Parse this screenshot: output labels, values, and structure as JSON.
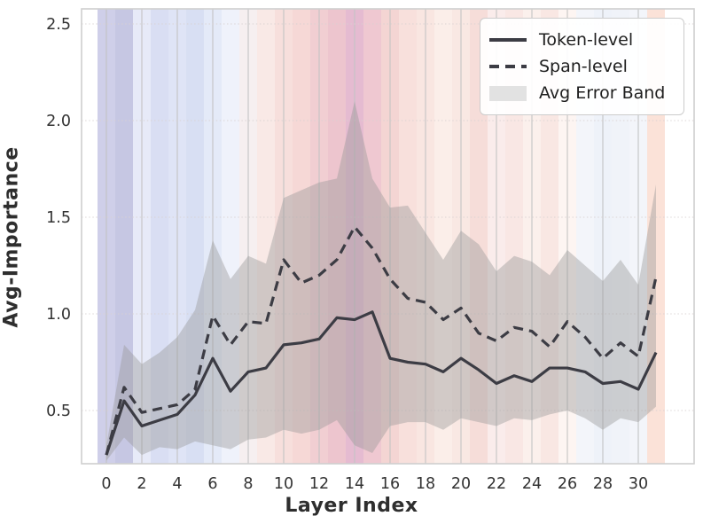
{
  "figure": {
    "xlabel": "Layer Index",
    "ylabel": "Avg-Importance",
    "legend": [
      {
        "label": "Token-level",
        "style": "solid-line"
      },
      {
        "label": "Span-level",
        "style": "dashed-line"
      },
      {
        "label": "Avg Error Band",
        "style": "patch"
      }
    ]
  },
  "chart_data": {
    "type": "line",
    "title": "",
    "xlabel": "Layer Index",
    "ylabel": "Avg-Importance",
    "legend_position": "upper right",
    "grid": true,
    "xlim": [
      -1.4,
      33.15
    ],
    "ylim": [
      0.22,
      2.58
    ],
    "xticks": [
      0,
      2,
      4,
      6,
      8,
      10,
      12,
      14,
      16,
      18,
      20,
      22,
      24,
      26,
      28,
      30
    ],
    "yticks": [
      "0.5",
      "1.0",
      "1.5",
      "2.0",
      "2.5"
    ],
    "x": [
      0,
      1,
      2,
      3,
      4,
      5,
      6,
      7,
      8,
      9,
      10,
      11,
      12,
      13,
      14,
      15,
      16,
      17,
      18,
      19,
      20,
      21,
      22,
      23,
      24,
      25,
      26,
      27,
      28,
      29,
      30,
      31
    ],
    "series": [
      {
        "name": "Token-level",
        "style": "solid",
        "values": [
          0.27,
          0.55,
          0.42,
          0.45,
          0.48,
          0.58,
          0.77,
          0.6,
          0.7,
          0.72,
          0.84,
          0.85,
          0.87,
          0.98,
          0.97,
          1.01,
          0.77,
          0.75,
          0.74,
          0.7,
          0.77,
          0.71,
          0.64,
          0.68,
          0.65,
          0.72,
          0.72,
          0.7,
          0.64,
          0.65,
          0.61,
          0.8
        ]
      },
      {
        "name": "Span-level",
        "style": "dashed",
        "values": [
          0.27,
          0.62,
          0.49,
          0.51,
          0.53,
          0.61,
          0.99,
          0.84,
          0.96,
          0.95,
          1.28,
          1.16,
          1.2,
          1.28,
          1.45,
          1.34,
          1.18,
          1.08,
          1.06,
          0.97,
          1.03,
          0.9,
          0.86,
          0.93,
          0.91,
          0.83,
          0.96,
          0.88,
          0.77,
          0.85,
          0.78,
          1.19
        ]
      }
    ],
    "band": {
      "name": "Avg Error Band",
      "upper": [
        0.32,
        0.84,
        0.74,
        0.8,
        0.88,
        1.02,
        1.38,
        1.18,
        1.3,
        1.26,
        1.6,
        1.64,
        1.68,
        1.7,
        2.1,
        1.7,
        1.55,
        1.56,
        1.42,
        1.28,
        1.43,
        1.36,
        1.22,
        1.3,
        1.27,
        1.2,
        1.33,
        1.25,
        1.17,
        1.28,
        1.15,
        1.67
      ],
      "lower": [
        0.24,
        0.36,
        0.27,
        0.31,
        0.3,
        0.34,
        0.32,
        0.3,
        0.35,
        0.36,
        0.4,
        0.38,
        0.4,
        0.45,
        0.32,
        0.28,
        0.42,
        0.44,
        0.44,
        0.4,
        0.46,
        0.44,
        0.42,
        0.46,
        0.45,
        0.48,
        0.5,
        0.46,
        0.4,
        0.46,
        0.44,
        0.52
      ]
    },
    "background_bands": {
      "note": "one vertical tint band per layer index 0-31",
      "colors": [
        "#cfcfe9",
        "#c6c7e3",
        "#e7eaf8",
        "#d9def3",
        "#dfe4f6",
        "#d8dff3",
        "#e4eaf8",
        "#eff2fb",
        "#f6eff0",
        "#f9e9e6",
        "#f7dfdc",
        "#f6d8d6",
        "#f1ced2",
        "#edc5ce",
        "#e5bbd1",
        "#efc8d1",
        "#f4d5d3",
        "#f8e0dc",
        "#f9e6e1",
        "#fbeee9",
        "#f9e8e3",
        "#f6ddd9",
        "#faeceb",
        "#f9e7e4",
        "#fbf0ec",
        "#f9e7e3",
        "#fdf5f2",
        "#f3f5fa",
        "#eef2f9",
        "#f0f3f9",
        "#f3f5fa",
        "#fbe2d8"
      ]
    },
    "colors": {
      "line": "#3c3c44",
      "band_fill": "#999999",
      "band_opacity": 0.42,
      "grid_vertical": "#c4c4c4",
      "grid_horizontal": "#d9d2d2",
      "frame": "#cfcfcf",
      "tick_label": "#333333"
    }
  }
}
